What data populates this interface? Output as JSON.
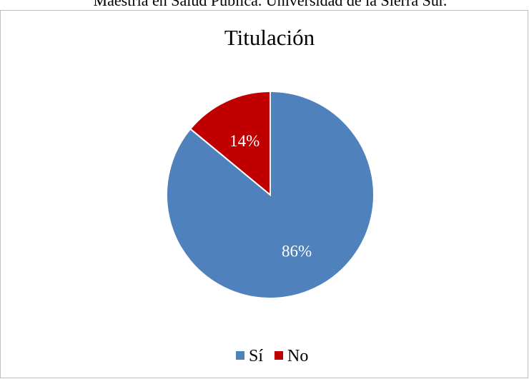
{
  "caption": "Maestría en Salud Pública. Universidad de la Sierra Sur.",
  "chart_data": {
    "type": "pie",
    "title": "Titulación",
    "categories": [
      "Sí",
      "No"
    ],
    "values": [
      86,
      14
    ],
    "labels": [
      "86%",
      "14%"
    ],
    "colors": [
      "#4f81bd",
      "#c00000"
    ],
    "start_angle_deg": 0,
    "direction": "clockwise",
    "legend_position": "bottom"
  }
}
